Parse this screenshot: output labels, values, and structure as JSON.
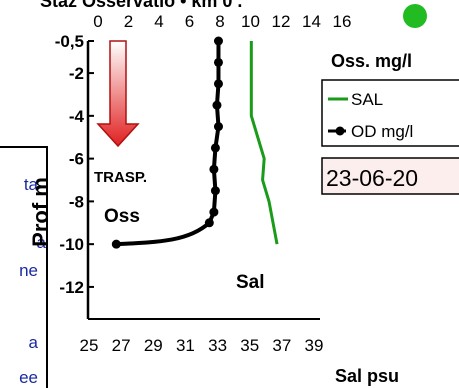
{
  "chart_data": {
    "type": "line",
    "title_partial": "Staz Osservatio • km 0 .",
    "top_axis": {
      "label": "Oss. mg/l",
      "ticks": [
        "0",
        "2",
        "4",
        "6",
        "8",
        "10",
        "12",
        "14",
        "16"
      ],
      "range": [
        0,
        16
      ]
    },
    "bottom_axis": {
      "label": "Sal psu",
      "ticks": [
        "25",
        "27",
        "29",
        "31",
        "33",
        "35",
        "37",
        "39"
      ],
      "range": [
        25,
        40
      ]
    },
    "y_axis": {
      "label": "Prof m",
      "ticks": [
        "-0,5",
        "-2",
        "-4",
        "-6",
        "-8",
        "-10",
        "-12"
      ],
      "tick_values": [
        -0.5,
        -2,
        -4,
        -6,
        -8,
        -10,
        -12
      ],
      "range": [
        -13.5,
        -0.5
      ]
    },
    "series": [
      {
        "name": "SAL",
        "color": "#1a9b1a",
        "axis": "bottom",
        "points": [
          [
            35.1,
            -0.5
          ],
          [
            35.1,
            -2
          ],
          [
            35.1,
            -4
          ],
          [
            35.9,
            -6
          ],
          [
            35.8,
            -7
          ],
          [
            36.2,
            -8
          ],
          [
            36.7,
            -10
          ]
        ]
      },
      {
        "name": "OD mg/l",
        "color": "#000000",
        "axis": "top",
        "points": [
          [
            7.9,
            -0.5
          ],
          [
            7.9,
            -1.5
          ],
          [
            7.9,
            -2.5
          ],
          [
            7.8,
            -3.5
          ],
          [
            7.9,
            -4.5
          ],
          [
            7.7,
            -5.5
          ],
          [
            7.6,
            -6.5
          ],
          [
            7.7,
            -7.5
          ],
          [
            7.6,
            -8.5
          ],
          [
            7.3,
            -9
          ],
          [
            1.2,
            -10
          ]
        ]
      }
    ],
    "annotations": {
      "trasp": "TRASP.",
      "oss": "Oss",
      "sal": "Sal",
      "date": "23-06-20"
    },
    "left_cut_text": [
      "ta",
      "a",
      "ne",
      "a",
      "ee"
    ],
    "status_dot_color": "#22bb22",
    "arrow_color": "#e02020"
  }
}
